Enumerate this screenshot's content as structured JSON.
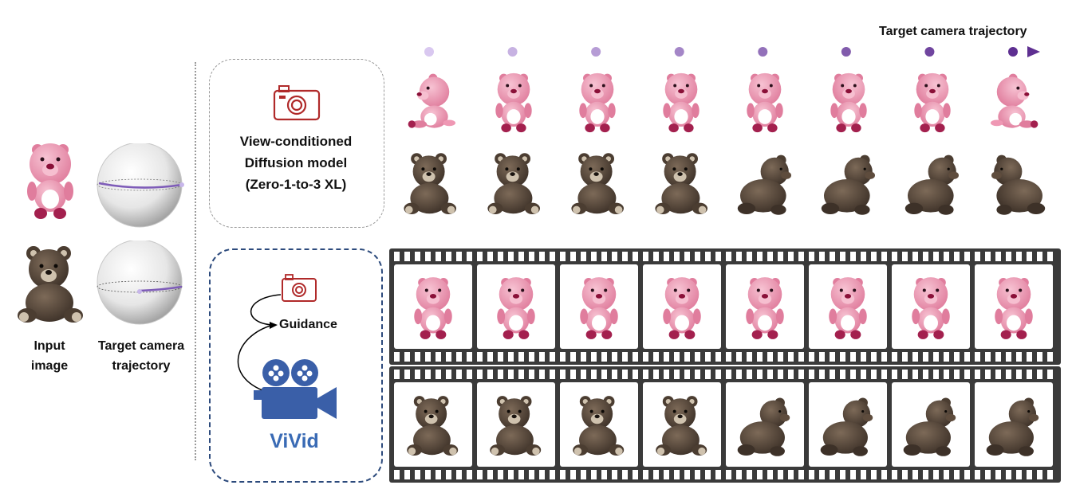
{
  "labels": {
    "input_image": [
      "Input",
      "image"
    ],
    "target_camera": [
      "Target camera",
      "trajectory"
    ],
    "trajectory_title": "Target camera trajectory"
  },
  "view_conditioned": {
    "lines": [
      "View-conditioned",
      "Diffusion model",
      "(Zero-1-to-3 XL)"
    ]
  },
  "vivid": {
    "guidance": "Guidance",
    "title": "ViVid"
  },
  "trajectory": {
    "num_points": 8,
    "start_color": "#d9c8f0",
    "end_color": "#5e2f91"
  },
  "views": {
    "pink_bear": [
      "side-left",
      "three-quarter-left",
      "front-left",
      "front",
      "front",
      "front-right",
      "three-quarter-right",
      "side-right"
    ],
    "brown_bear": [
      "front",
      "front",
      "front",
      "three-quarter",
      "side",
      "side",
      "back-side",
      "back"
    ]
  },
  "colors": {
    "pink_fur": "#ef98b4",
    "pink_dark": "#a3204e",
    "brown_fur": "#5b4a3c",
    "brown_light": "#cfc2ae",
    "camera_red": "#b02a2a",
    "vivid_blue": "#3a5fa8",
    "film_dark": "#3a3a3a"
  }
}
